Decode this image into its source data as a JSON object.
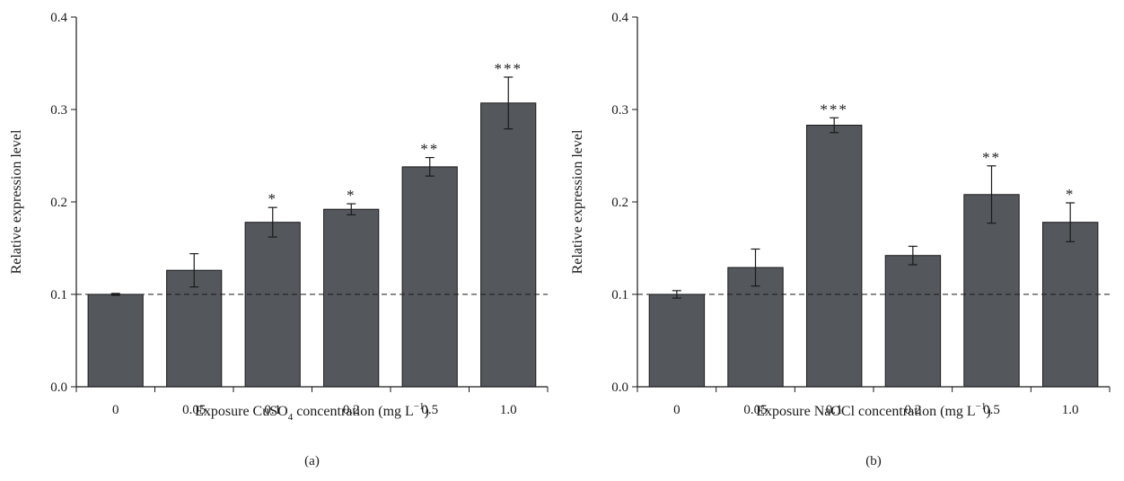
{
  "chart_data": [
    {
      "type": "bar",
      "panel_label": "(a)",
      "categories": [
        "0",
        "0.05",
        "0.1",
        "0.2",
        "0.5",
        "1.0"
      ],
      "values": [
        0.1,
        0.126,
        0.178,
        0.192,
        0.238,
        0.307
      ],
      "errors": [
        0.001,
        0.018,
        0.016,
        0.006,
        0.01,
        0.028
      ],
      "significance": [
        "",
        "",
        "*",
        "*",
        "**",
        "***"
      ],
      "xlabel": {
        "prefix": "Exposure CuSO",
        "sub": "4",
        "middle": " concentration (mg L",
        "sup": "−1",
        "suffix": ")"
      },
      "ylabel": "Relative expression level",
      "ylim": [
        0,
        0.4
      ],
      "yticks": [
        "0.0",
        "0.1",
        "0.2",
        "0.3",
        "0.4"
      ],
      "reference_line": 0.1,
      "bar_color": "#54575c"
    },
    {
      "type": "bar",
      "panel_label": "(b)",
      "categories": [
        "0",
        "0.05",
        "0.1",
        "0.2",
        "0.5",
        "1.0"
      ],
      "values": [
        0.1,
        0.129,
        0.283,
        0.142,
        0.208,
        0.178
      ],
      "errors": [
        0.004,
        0.02,
        0.008,
        0.01,
        0.031,
        0.021
      ],
      "significance": [
        "",
        "",
        "***",
        "",
        "**",
        "*"
      ],
      "xlabel": {
        "prefix": "Exposure NaOCl concentration (mg L",
        "sub": "",
        "middle": "",
        "sup": "−1",
        "suffix": ")"
      },
      "ylabel": "Relative expression level",
      "ylim": [
        0,
        0.4
      ],
      "yticks": [
        "0.0",
        "0.1",
        "0.2",
        "0.3",
        "0.4"
      ],
      "reference_line": 0.1,
      "bar_color": "#54575c"
    }
  ]
}
